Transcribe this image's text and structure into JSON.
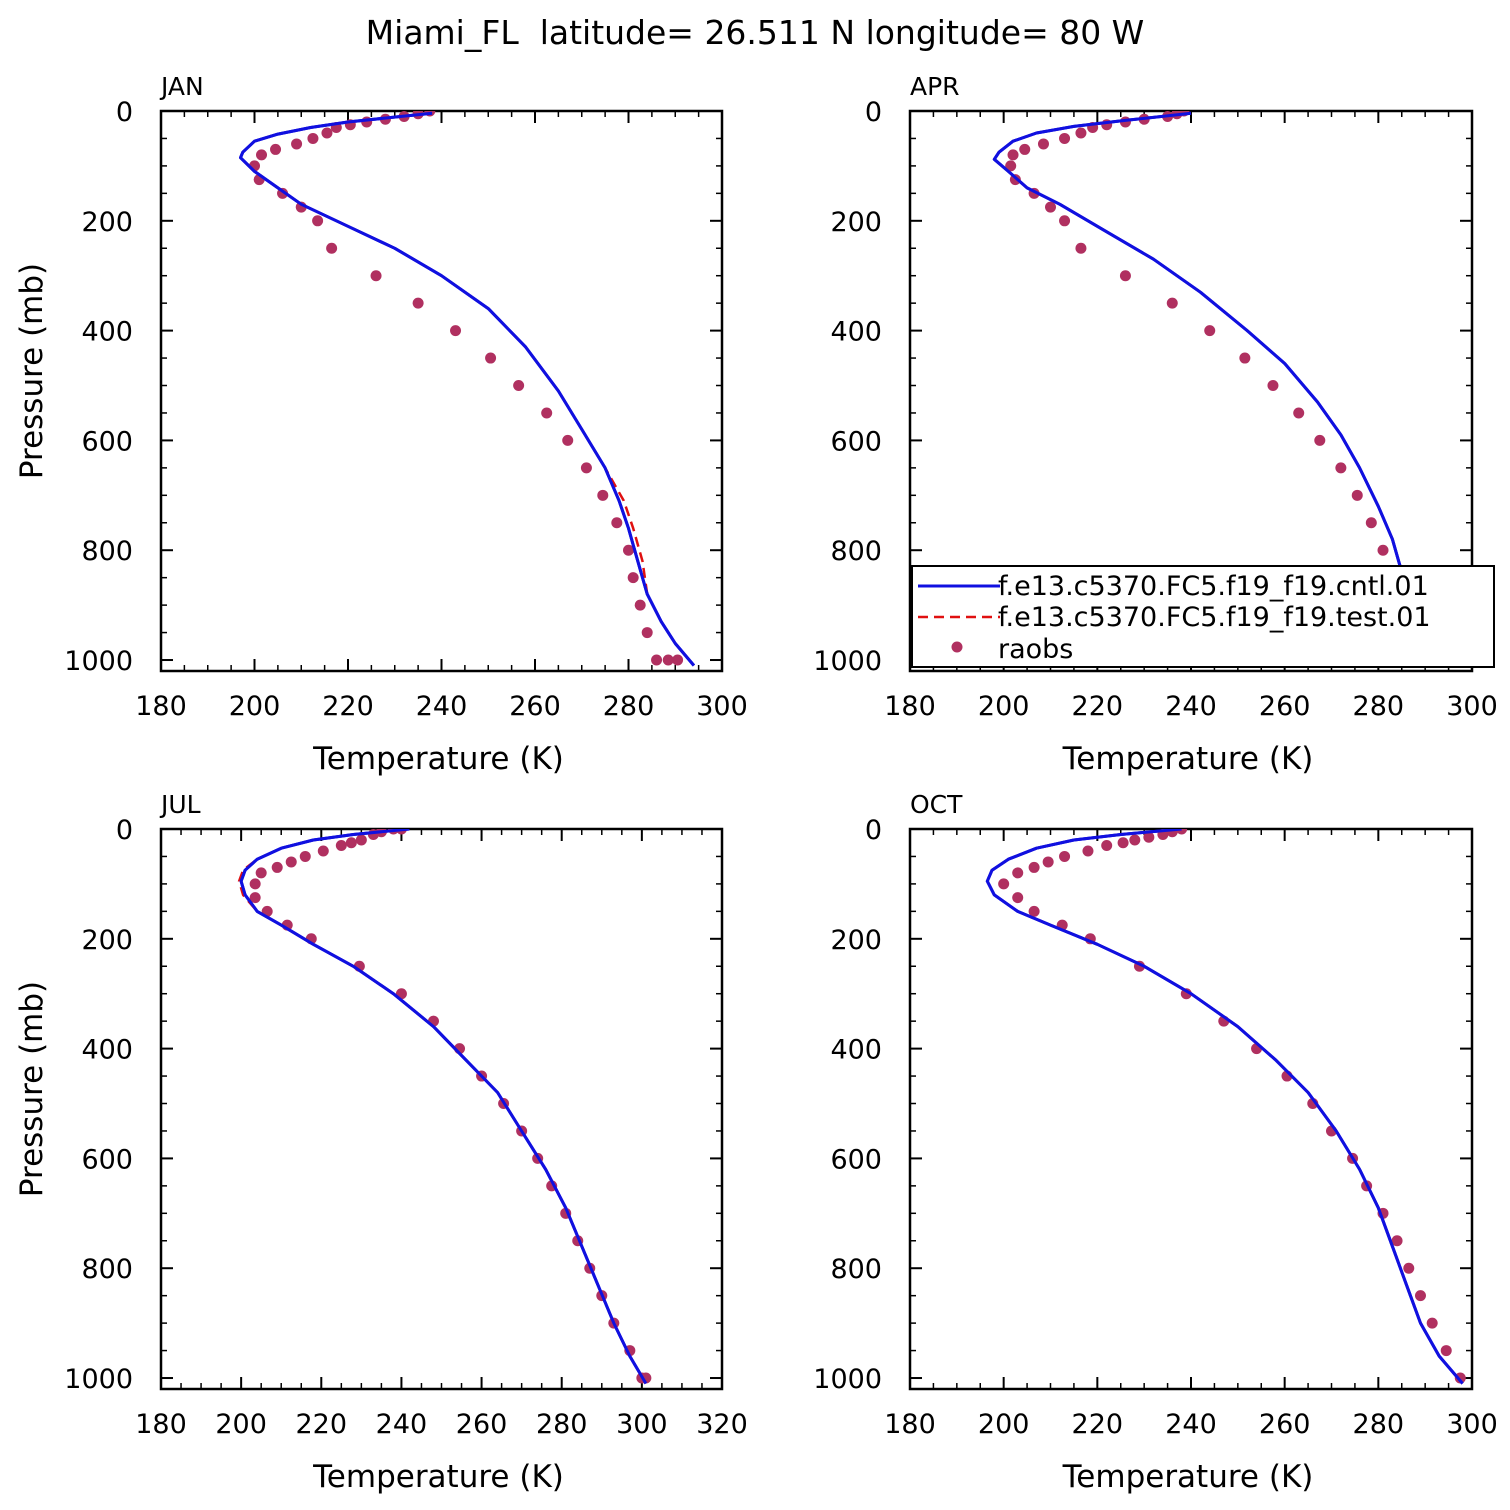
{
  "figure": {
    "title": "Miami_FL  latitude= 26.511 N longitude= 80 W",
    "colors": {
      "cntl": "#1010e0",
      "test": "#e01010",
      "raobs": "#b03060"
    }
  },
  "chart_data": [
    {
      "type": "line",
      "panel": "JAN",
      "xlabel": "Temperature (K)",
      "ylabel": "Pressure (mb)",
      "xlim": [
        180,
        300
      ],
      "ylim": [
        1020,
        0
      ],
      "y_inverted": true,
      "xticks": [
        180,
        200,
        220,
        240,
        260,
        280,
        300
      ],
      "yticks": [
        0,
        200,
        400,
        600,
        800,
        1000
      ],
      "series": [
        {
          "name": "f.e13.c5370.FC5.f19_f19.cntl.01",
          "style": "solid",
          "x": [
            238,
            220,
            212,
            205,
            200,
            197.5,
            197,
            200,
            205,
            210,
            220,
            230,
            240,
            250,
            258,
            265,
            270,
            275,
            278,
            280,
            282,
            284,
            287,
            290,
            294
          ],
          "y": [
            4,
            20,
            30,
            42,
            55,
            75,
            85,
            110,
            140,
            170,
            210,
            250,
            300,
            360,
            430,
            510,
            580,
            650,
            710,
            760,
            820,
            880,
            930,
            970,
            1010
          ]
        },
        {
          "name": "f.e13.c5370.FC5.f19_f19.test.01",
          "style": "dashed",
          "x": [
            238,
            220,
            212,
            205,
            200,
            197.5,
            197,
            200,
            205,
            210,
            220,
            230,
            240,
            250,
            258,
            265,
            270,
            275,
            279,
            281,
            283,
            284,
            287,
            290,
            294
          ],
          "y": [
            4,
            20,
            30,
            42,
            55,
            75,
            85,
            110,
            140,
            170,
            210,
            250,
            300,
            360,
            430,
            510,
            580,
            650,
            710,
            760,
            820,
            880,
            930,
            970,
            1010
          ]
        },
        {
          "name": "raobs",
          "style": "markers",
          "x": [
            237.5,
            235,
            232,
            228,
            224,
            220.5,
            217.5,
            215.5,
            212.5,
            209,
            204.5,
            201.5,
            200,
            201,
            206,
            210,
            213.5,
            216.5,
            226,
            235,
            243,
            250.5,
            256.5,
            262.5,
            267,
            271,
            274.5,
            277.5,
            280,
            281,
            282.5,
            284,
            286,
            288.5,
            290.5
          ],
          "y": [
            0,
            5,
            10,
            15,
            20,
            25,
            30,
            40,
            50,
            60,
            70,
            80,
            100,
            125,
            150,
            175,
            200,
            250,
            300,
            350,
            400,
            450,
            500,
            550,
            600,
            650,
            700,
            750,
            800,
            850,
            900,
            950,
            1000,
            1000,
            1000
          ]
        }
      ]
    },
    {
      "type": "line",
      "panel": "APR",
      "xlabel": "Temperature (K)",
      "ylabel": "",
      "xlim": [
        180,
        300
      ],
      "ylim": [
        1020,
        0
      ],
      "y_inverted": true,
      "xticks": [
        180,
        200,
        220,
        240,
        260,
        280,
        300
      ],
      "yticks": [
        0,
        200,
        400,
        600,
        800,
        1000
      ],
      "legend": {
        "placement": "lower-right",
        "entries": [
          "f.e13.c5370.FC5.f19_f19.cntl.01",
          "f.e13.c5370.FC5.f19_f19.test.01",
          "raobs"
        ]
      },
      "series": [
        {
          "name": "f.e13.c5370.FC5.f19_f19.cntl.01",
          "style": "solid",
          "x": [
            240,
            225,
            215,
            207,
            202,
            199,
            198,
            201,
            205,
            212,
            222,
            232,
            242,
            252,
            260,
            267,
            272,
            276,
            280,
            283,
            285,
            287,
            290,
            293,
            297
          ],
          "y": [
            4,
            18,
            28,
            40,
            55,
            75,
            88,
            110,
            140,
            170,
            220,
            270,
            330,
            400,
            460,
            530,
            590,
            650,
            720,
            780,
            840,
            900,
            940,
            975,
            1010
          ]
        },
        {
          "name": "f.e13.c5370.FC5.f19_f19.test.01",
          "style": "dashed",
          "x": [
            240,
            225,
            215,
            207,
            202,
            199,
            198,
            201,
            205,
            212,
            222,
            232,
            242,
            252,
            260,
            267,
            272,
            276,
            280,
            283,
            285,
            287,
            290,
            293,
            297
          ],
          "y": [
            4,
            18,
            28,
            40,
            55,
            75,
            88,
            110,
            140,
            170,
            220,
            270,
            330,
            400,
            460,
            530,
            590,
            650,
            720,
            780,
            840,
            900,
            940,
            975,
            1010
          ]
        },
        {
          "name": "raobs",
          "style": "markers",
          "x": [
            238.5,
            237,
            235,
            230,
            226,
            222,
            219,
            216.5,
            213,
            208.5,
            204.5,
            202,
            201.5,
            202.5,
            206.5,
            210,
            213,
            216.5,
            226,
            236,
            244,
            251.5,
            257.5,
            263,
            267.5,
            272,
            275.5,
            278.5,
            281,
            282.5,
            285,
            288,
            290.5,
            292.5,
            295.5
          ],
          "y": [
            0,
            5,
            10,
            15,
            20,
            25,
            30,
            40,
            50,
            60,
            70,
            80,
            100,
            125,
            150,
            175,
            200,
            250,
            300,
            350,
            400,
            450,
            500,
            550,
            600,
            650,
            700,
            750,
            800,
            850,
            900,
            950,
            1000,
            1000,
            1000
          ]
        }
      ]
    },
    {
      "type": "line",
      "panel": "JUL",
      "xlabel": "Temperature (K)",
      "ylabel": "Pressure (mb)",
      "xlim": [
        180,
        320
      ],
      "ylim": [
        1020,
        0
      ],
      "y_inverted": true,
      "xticks": [
        180,
        200,
        220,
        240,
        260,
        280,
        300,
        320
      ],
      "yticks": [
        0,
        200,
        400,
        600,
        800,
        1000
      ],
      "series": [
        {
          "name": "f.e13.c5370.FC5.f19_f19.cntl.01",
          "style": "solid",
          "x": [
            242,
            228,
            218,
            210,
            204,
            201,
            200,
            201,
            204,
            210,
            218,
            228,
            238,
            248,
            256,
            264,
            270,
            276,
            281,
            285,
            289,
            293,
            297,
            301
          ],
          "y": [
            0,
            10,
            20,
            35,
            55,
            75,
            95,
            120,
            150,
            175,
            210,
            250,
            300,
            360,
            420,
            480,
            550,
            620,
            690,
            760,
            830,
            900,
            960,
            1010
          ]
        },
        {
          "name": "f.e13.c5370.FC5.f19_f19.test.01",
          "style": "dashed",
          "x": [
            242,
            228,
            218,
            210,
            204,
            200.5,
            199.5,
            200.5,
            204,
            210,
            218,
            228,
            238,
            248,
            256,
            264,
            270,
            276,
            281,
            285,
            289,
            293,
            297,
            301
          ],
          "y": [
            0,
            10,
            20,
            35,
            55,
            75,
            95,
            120,
            150,
            175,
            210,
            250,
            300,
            360,
            420,
            480,
            550,
            620,
            690,
            760,
            830,
            900,
            960,
            1010
          ]
        },
        {
          "name": "raobs",
          "style": "markers",
          "x": [
            240,
            238,
            235,
            233,
            230,
            227.5,
            225,
            220.5,
            216,
            212.5,
            209,
            205,
            203.5,
            203.5,
            206.5,
            211.5,
            217.5,
            229.5,
            240,
            248,
            254.5,
            260,
            265.5,
            270,
            274,
            277.5,
            281,
            284,
            287,
            290,
            293,
            297,
            300,
            301
          ],
          "y": [
            0,
            0,
            5,
            10,
            20,
            25,
            30,
            40,
            50,
            60,
            70,
            80,
            100,
            125,
            150,
            175,
            200,
            250,
            300,
            350,
            400,
            450,
            500,
            550,
            600,
            650,
            700,
            750,
            800,
            850,
            900,
            950,
            1000,
            1000
          ]
        }
      ]
    },
    {
      "type": "line",
      "panel": "OCT",
      "xlabel": "Temperature (K)",
      "ylabel": "",
      "xlim": [
        180,
        300
      ],
      "ylim": [
        1020,
        0
      ],
      "y_inverted": true,
      "xticks": [
        180,
        200,
        220,
        240,
        260,
        280,
        300
      ],
      "yticks": [
        0,
        200,
        400,
        600,
        800,
        1000
      ],
      "series": [
        {
          "name": "f.e13.c5370.FC5.f19_f19.cntl.01",
          "style": "solid",
          "x": [
            238,
            225,
            215,
            207,
            201,
            197.5,
            196.5,
            198,
            203,
            210,
            220,
            230,
            240,
            250,
            258,
            265,
            271,
            276,
            280,
            283,
            286,
            289,
            293,
            298
          ],
          "y": [
            0,
            10,
            20,
            35,
            55,
            75,
            95,
            120,
            150,
            175,
            210,
            250,
            300,
            360,
            420,
            480,
            550,
            620,
            690,
            760,
            830,
            900,
            960,
            1010
          ]
        },
        {
          "name": "f.e13.c5370.FC5.f19_f19.test.01",
          "style": "dashed",
          "x": [
            238,
            225,
            215,
            207,
            201,
            197.5,
            196.5,
            198,
            203,
            210,
            220,
            230,
            240,
            250,
            258,
            265,
            271,
            276,
            280,
            283,
            286,
            289,
            293,
            298
          ],
          "y": [
            0,
            10,
            20,
            35,
            55,
            75,
            95,
            120,
            150,
            175,
            210,
            250,
            300,
            360,
            420,
            480,
            550,
            620,
            690,
            760,
            830,
            900,
            960,
            1010
          ]
        },
        {
          "name": "raobs",
          "style": "markers",
          "x": [
            238,
            236,
            234,
            231,
            228,
            225.5,
            222,
            218,
            213,
            209.5,
            206.5,
            203,
            200,
            203,
            206.5,
            212.5,
            218.5,
            229,
            239,
            247,
            254,
            260.5,
            266,
            270,
            274.5,
            277.5,
            281,
            284,
            286.5,
            289,
            291.5,
            294.5,
            297.5
          ],
          "y": [
            0,
            5,
            10,
            15,
            20,
            25,
            30,
            40,
            50,
            60,
            70,
            80,
            100,
            125,
            150,
            175,
            200,
            250,
            300,
            350,
            400,
            450,
            500,
            550,
            600,
            650,
            700,
            750,
            800,
            850,
            900,
            950,
            1000
          ]
        }
      ]
    }
  ]
}
